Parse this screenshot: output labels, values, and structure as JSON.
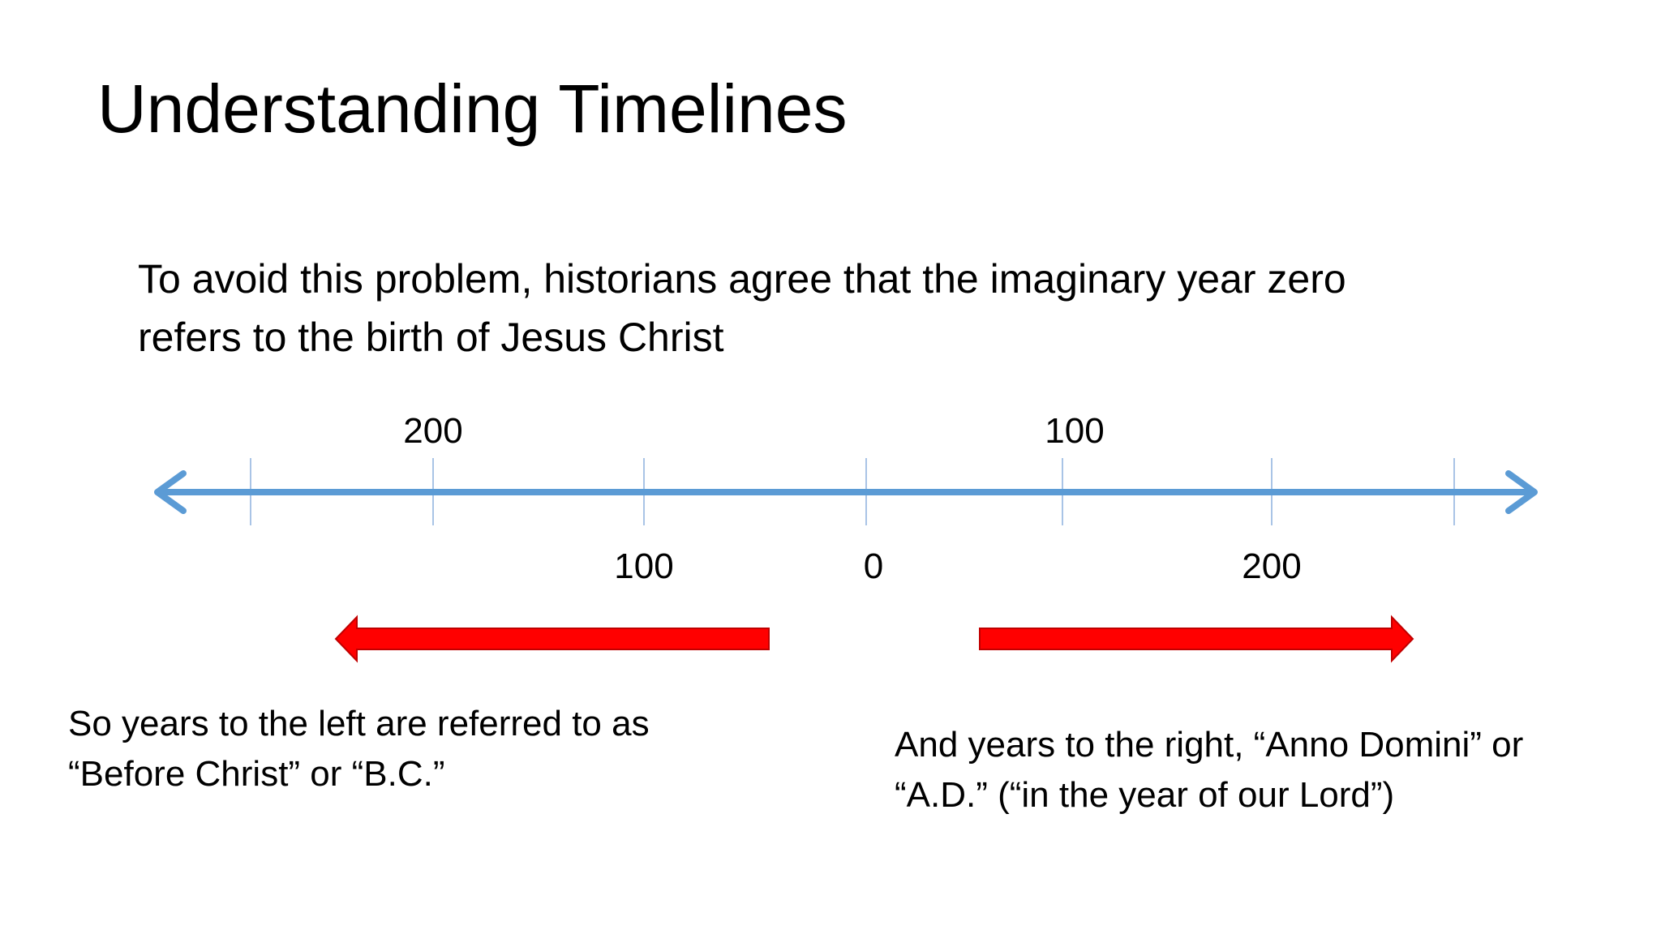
{
  "slide": {
    "title": "Understanding Timelines",
    "intro_lines": [
      "To avoid this problem, historians agree that the imaginary year zero",
      "refers to the birth of Jesus Christ"
    ],
    "left_caption_lines": [
      "So years to the left are referred to as",
      "“Before Christ” or “B.C.”"
    ],
    "right_caption_lines": [
      "And years to the right, “Anno Domini” or",
      "“A.D.” (“in the year of our Lord”)"
    ]
  },
  "timeline": {
    "upper_labels": [
      "200",
      "100"
    ],
    "lower_labels": [
      "100",
      "0",
      "200"
    ],
    "axis_color": "#5B9BD5",
    "arrow_fill": "#FF0000",
    "arrow_stroke": "#C00000"
  }
}
